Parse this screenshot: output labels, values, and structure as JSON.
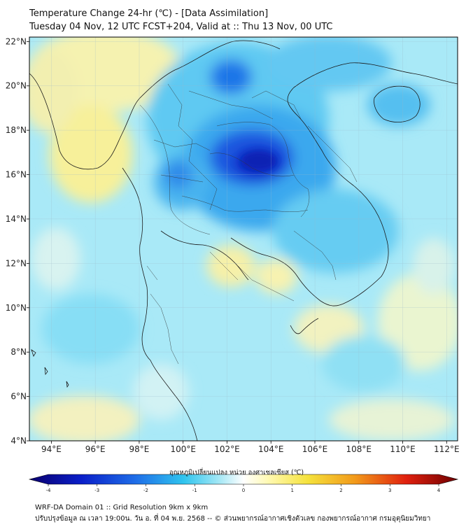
{
  "title_line1": "Temperature Change 24-hr (℃) - [Data Assimilation]",
  "title_line2": "Tuesday 04 Nov, 12 UTC FCST+204, Valid at :: Thu 13 Nov, 00 UTC",
  "map": {
    "lon_range": [
      93,
      112.5
    ],
    "lat_range": [
      4,
      22.2
    ],
    "lon_ticks": [
      {
        "value": 94,
        "label": "94°E"
      },
      {
        "value": 96,
        "label": "96°E"
      },
      {
        "value": 98,
        "label": "98°E"
      },
      {
        "value": 100,
        "label": "100°E"
      },
      {
        "value": 102,
        "label": "102°E"
      },
      {
        "value": 104,
        "label": "104°E"
      },
      {
        "value": 106,
        "label": "106°E"
      },
      {
        "value": 108,
        "label": "108°E"
      },
      {
        "value": 110,
        "label": "110°E"
      },
      {
        "value": 112,
        "label": "112°E"
      }
    ],
    "lat_ticks": [
      {
        "value": 4,
        "label": "4°N"
      },
      {
        "value": 6,
        "label": "6°N"
      },
      {
        "value": 8,
        "label": "8°N"
      },
      {
        "value": 10,
        "label": "10°N"
      },
      {
        "value": 12,
        "label": "12°N"
      },
      {
        "value": 14,
        "label": "14°N"
      },
      {
        "value": 16,
        "label": "16°N"
      },
      {
        "value": 18,
        "label": "18°N"
      },
      {
        "value": 20,
        "label": "20°N"
      },
      {
        "value": 22,
        "label": "22°N"
      }
    ]
  },
  "colorbar": {
    "label": "อุณหภูมิเปลี่ยนแปลง หน่วย องศาเซลเซียส (℃)",
    "min": -4,
    "max": 4,
    "ticks": [
      {
        "value": -4,
        "label": "-4"
      },
      {
        "value": -3,
        "label": "-3"
      },
      {
        "value": -2,
        "label": "-2"
      },
      {
        "value": -1,
        "label": "-1"
      },
      {
        "value": 0,
        "label": "0"
      },
      {
        "value": 1,
        "label": "1"
      },
      {
        "value": 2,
        "label": "2"
      },
      {
        "value": 3,
        "label": "3"
      },
      {
        "value": 4,
        "label": "4"
      }
    ]
  },
  "footer_line1": "WRF-DA Domain 01 :: Grid Resolution 9km x 9km",
  "footer_line2": "ปรับปรุงข้อมูล ณ เวลา 19:00น. วัน อ. ที่ 04 พ.ย. 2568 -- © ส่วนพยากรณ์อากาศเชิงตัวเลข กองพยากรณ์อากาศ กรมอุตุนิยมวิทยา"
}
